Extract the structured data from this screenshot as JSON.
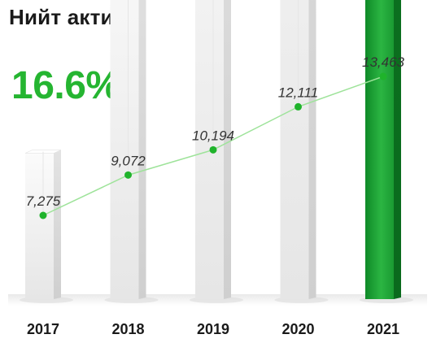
{
  "title": "Нийт актив",
  "highlight": "16.6%",
  "colors": {
    "accent": "#25b531",
    "highlight_bar": "#1f9a32",
    "line": "#9ee39a",
    "marker": "#1fb32b"
  },
  "chart_data": {
    "type": "bar",
    "title": "Нийт актив",
    "categories": [
      "2017",
      "2018",
      "2019",
      "2020",
      "2021"
    ],
    "values": [
      7275,
      9072,
      10194,
      12111,
      13463
    ],
    "value_labels": [
      "7,275",
      "9,072",
      "10,194",
      "12,111",
      "13,463"
    ],
    "xlabel": "",
    "ylabel": "",
    "highlighted_category": "2021",
    "trend_line": true,
    "grid": false,
    "legend": "none"
  }
}
